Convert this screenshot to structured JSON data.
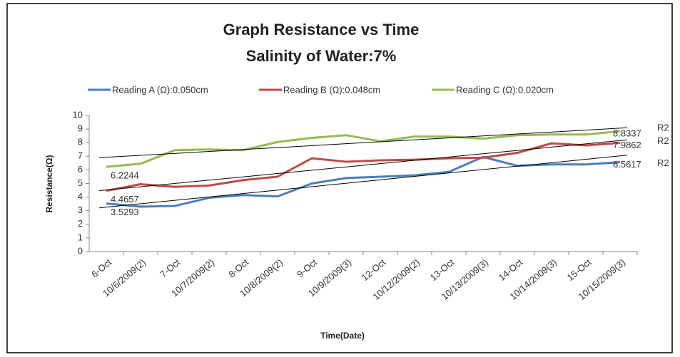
{
  "chart_data": {
    "type": "line",
    "title": "Graph Resistance vs Time",
    "subtitle": "Salinity of Water:7%",
    "xlabel": "Time(Date)",
    "ylabel": "Resistance(Ω)",
    "categories": [
      "6-Oct",
      "10/6/2009(2)",
      "7-Oct",
      "10/7/2009(2)",
      "8-Oct",
      "10/8/2009(2)",
      "9-Oct",
      "10/9/2009(3)",
      "12-Oct",
      "10/12/2009(2)",
      "13-Oct",
      "10/13/2009(3)",
      "14-Oct",
      "10/14/2009(3)",
      "15-Oct",
      "10/15/2009(3)"
    ],
    "series": [
      {
        "name": "Reading A (Ω):0.050cm",
        "color": "#4a7ebb",
        "values": [
          3.5293,
          3.3,
          3.35,
          3.95,
          4.15,
          4.05,
          5.0,
          5.4,
          5.5,
          5.6,
          5.85,
          6.95,
          6.3,
          6.4,
          6.4,
          6.5617
        ]
      },
      {
        "name": "Reading B (Ω):0.048cm",
        "color": "#be4b48",
        "values": [
          4.4657,
          4.95,
          4.75,
          4.85,
          5.25,
          5.5,
          6.85,
          6.6,
          6.7,
          6.75,
          6.85,
          6.9,
          7.25,
          7.95,
          7.8,
          7.9862
        ]
      },
      {
        "name": "Reading C (Ω):0.020cm",
        "color": "#98b954",
        "values": [
          6.2244,
          6.45,
          7.45,
          7.5,
          7.45,
          8.05,
          8.35,
          8.55,
          8.1,
          8.45,
          8.45,
          8.3,
          8.55,
          8.6,
          8.6,
          8.8337
        ]
      }
    ],
    "annotations": [
      "R2",
      "R2",
      "R2"
    ],
    "ylim": [
      0,
      10
    ],
    "yticks": [
      0,
      1,
      2,
      3,
      4,
      5,
      6,
      7,
      8,
      9,
      10
    ],
    "trendline": true,
    "legend": "top"
  }
}
